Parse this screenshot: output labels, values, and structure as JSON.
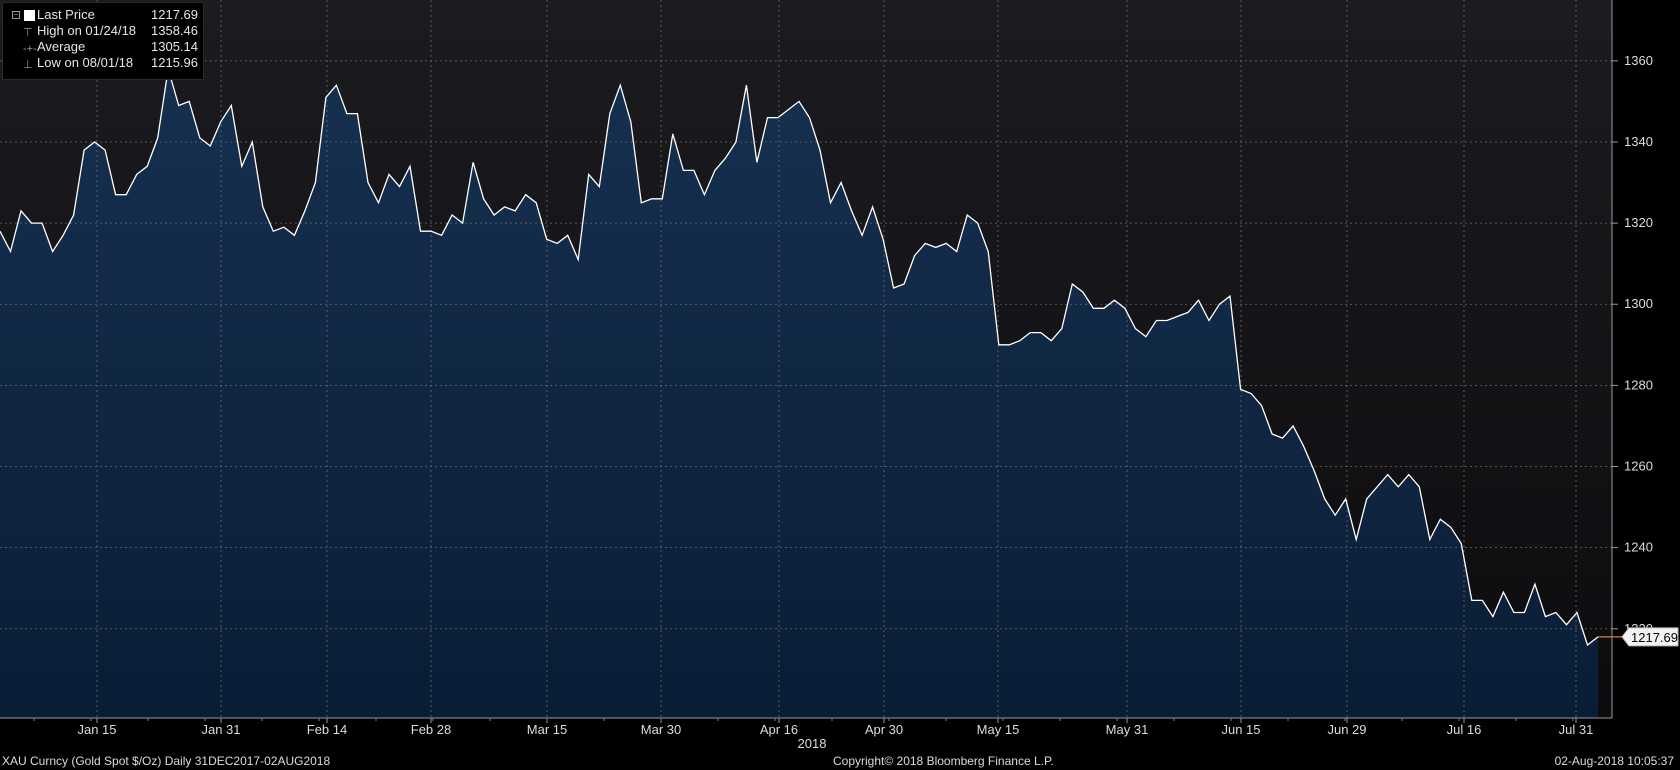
{
  "legend": {
    "last_label": "Last Price",
    "last_value": "1217.69",
    "high_label": "High on 01/24/18",
    "high_value": "1358.46",
    "avg_label": "Average",
    "avg_value": "1305.14",
    "low_label": "Low on 08/01/18",
    "low_value": "1215.96",
    "line_color": "#ffffff"
  },
  "footer": {
    "left": "XAU Curncy (Gold Spot  $/Oz)  Daily 31DEC2017-02AUG2018",
    "center": "Copyright© 2018 Bloomberg Finance L.P.",
    "right": "02-Aug-2018 10:05:37"
  },
  "chart_data": {
    "type": "area",
    "year_label": "2018",
    "x_tick_labels": [
      "Jan 15",
      "Jan 31",
      "Feb 14",
      "Feb 28",
      "Mar 15",
      "Mar 30",
      "Apr 16",
      "Apr 30",
      "May 15",
      "May 31",
      "Jun 15",
      "Jun 29",
      "Jul 16",
      "Jul 31"
    ],
    "y_tick_labels": [
      "1360",
      "1340",
      "1320",
      "1300",
      "1280",
      "1260",
      "1240",
      "1220"
    ],
    "ylim": [
      1198,
      1375
    ],
    "grid": true,
    "last_price_label": "1217.69",
    "colors": {
      "background_top": "#18181c",
      "fill_top": "#163050",
      "fill_bottom": "#0a1d36",
      "line": "#ffffff",
      "last_price_marker": "#e07b39"
    },
    "series": [
      {
        "values": [
          1318,
          1313,
          1323,
          1320,
          1320,
          1313,
          1317,
          1322,
          1338,
          1340,
          1338,
          1327,
          1327,
          1332,
          1334,
          1341,
          1358,
          1349,
          1350,
          1341,
          1339,
          1345,
          1349,
          1334,
          1340,
          1324,
          1318,
          1319,
          1317,
          1323,
          1330,
          1351,
          1354,
          1347,
          1347,
          1330,
          1325,
          1332,
          1329,
          1334,
          1318,
          1318,
          1317,
          1322,
          1320,
          1335,
          1326,
          1322,
          1324,
          1323,
          1327,
          1325,
          1316,
          1315,
          1317,
          1311,
          1332,
          1329,
          1347,
          1354,
          1345,
          1325,
          1326,
          1326,
          1342,
          1333,
          1333,
          1327,
          1333,
          1336,
          1340,
          1354,
          1335,
          1346,
          1346,
          1348,
          1350,
          1346,
          1338,
          1325,
          1330,
          1323,
          1317,
          1324,
          1316,
          1304,
          1305,
          1312,
          1315,
          1314,
          1315,
          1313,
          1322,
          1320,
          1313,
          1290,
          1290,
          1291,
          1293,
          1293,
          1291,
          1294,
          1305,
          1303,
          1299,
          1299,
          1301,
          1299,
          1294,
          1292,
          1296,
          1296,
          1297,
          1298,
          1301,
          1296,
          1300,
          1302,
          1279,
          1278,
          1275,
          1268,
          1267,
          1270,
          1265,
          1259,
          1252,
          1248,
          1252,
          1242,
          1252,
          1255,
          1258,
          1255,
          1258,
          1255,
          1242,
          1247,
          1245,
          1241,
          1227,
          1227,
          1223,
          1229,
          1224,
          1224,
          1231,
          1223,
          1224,
          1221,
          1224,
          1216,
          1218
        ]
      }
    ]
  }
}
